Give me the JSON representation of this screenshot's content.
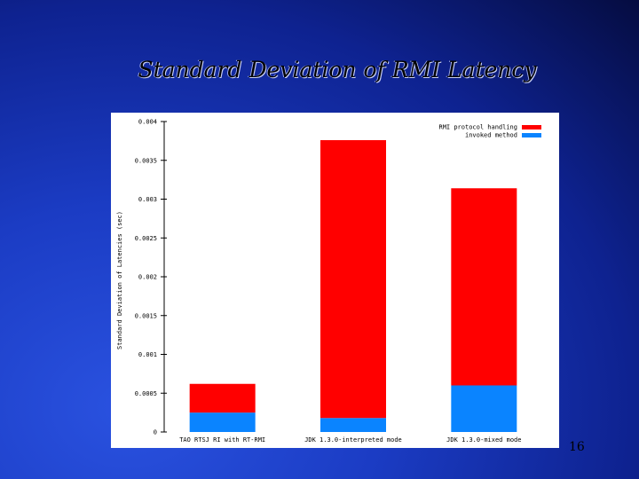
{
  "slide": {
    "title": "Standard Deviation of RMI Latency",
    "page_number": "16"
  },
  "chart_data": {
    "type": "bar",
    "stacked": true,
    "title": "",
    "xlabel": "",
    "ylabel": "Standard Deviation of Latencies (sec)",
    "ylim": [
      0,
      0.004
    ],
    "yticks": [
      "0",
      "0.0005",
      "0.001",
      "0.0015",
      "0.002",
      "0.0025",
      "0.003",
      "0.0035",
      "0.004"
    ],
    "categories": [
      "TAO RTSJ RI with RT-RMI",
      "JDK 1.3.0-interpreted mode",
      "JDK 1.3.0-mixed mode"
    ],
    "series": [
      {
        "name": "invoked method",
        "color": "#0a84ff",
        "values": [
          0.00025,
          0.00018,
          0.0006
        ]
      },
      {
        "name": "RMI protocol handling",
        "color": "#ff0000",
        "values": [
          0.00037,
          0.00358,
          0.00254
        ]
      }
    ],
    "legend_order": [
      "RMI protocol handling",
      "invoked method"
    ],
    "legend_position": "top-right",
    "grid": false
  }
}
